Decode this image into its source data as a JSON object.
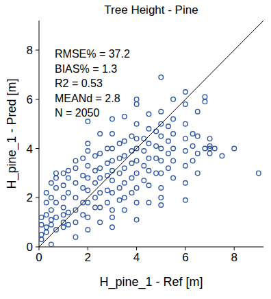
{
  "chart_data": {
    "type": "scatter",
    "title": "Tree Height - Pine",
    "x_label": "H_pine_1 - Ref [m]",
    "y_label": "H_pine_1 - Pred [m]",
    "annotations": [
      "RMSE% = 37.2",
      "BIAS% = 1.3",
      "R2 = 0.53",
      "MEANd = 2.8",
      "N = 2050"
    ],
    "xlim": [
      0,
      9.2
    ],
    "ylim": [
      0,
      9.2
    ],
    "xticks": [
      0,
      2,
      4,
      6,
      8
    ],
    "yticks": [
      0,
      2,
      4,
      6,
      8
    ],
    "grid": false,
    "series": [
      {
        "type": "scatter",
        "marker": "circle",
        "color": "#2e56a6",
        "x": [
          0.1,
          0.1,
          0.1,
          0.1,
          0.3,
          0.3,
          0.3,
          0.3,
          0.3,
          0.5,
          0.5,
          0.5,
          0.5,
          0.5,
          0.5,
          0.7,
          0.7,
          0.7,
          0.7,
          0.7,
          0.7,
          1,
          1,
          1,
          1,
          1,
          1,
          1,
          1.2,
          1.2,
          1.2,
          1.2,
          1.2,
          1.5,
          1.5,
          1.5,
          1.5,
          1.5,
          1.5,
          1.5,
          1.8,
          1.8,
          1.8,
          1.8,
          1.8,
          2,
          2,
          2,
          2,
          2,
          2,
          2,
          2,
          2,
          2.3,
          2.3,
          2.3,
          2.3,
          2.3,
          2.5,
          2.5,
          2.5,
          2.5,
          2.5,
          2.5,
          2.5,
          2.8,
          2.8,
          2.8,
          2.8,
          2.8,
          3,
          3,
          3,
          3,
          3,
          3,
          3,
          3,
          3,
          3,
          3.3,
          3.3,
          3.3,
          3.3,
          3.3,
          3.5,
          3.5,
          3.5,
          3.5,
          3.5,
          3.5,
          3.5,
          3.8,
          3.8,
          3.8,
          3.8,
          3.8,
          4,
          4,
          4,
          4,
          4,
          4,
          4,
          4,
          4,
          4,
          4.3,
          4.3,
          4.3,
          4.3,
          4.5,
          4.5,
          4.5,
          4.5,
          4.5,
          4.5,
          4.5,
          4.8,
          4.8,
          4.8,
          4.8,
          5,
          5,
          5,
          5,
          5,
          5,
          5,
          5,
          5,
          5,
          5.3,
          5.3,
          5.3,
          5.3,
          5.5,
          5.5,
          5.5,
          5.5,
          5.5,
          5.5,
          6,
          6,
          6,
          6,
          6,
          6,
          6,
          6,
          6.3,
          6.3,
          6.3,
          6.5,
          6.5,
          6.5,
          6.5,
          6.8,
          6.8,
          6.8,
          7,
          7,
          7,
          7,
          7.2,
          7.5,
          8,
          9
        ],
        "values": [
          0.5,
          0.9,
          1.2,
          0.3,
          0.8,
          1.3,
          1.8,
          0.6,
          2.2,
          0.9,
          1.5,
          2.0,
          2.6,
          0.1,
          1.1,
          1.2,
          1.8,
          2.4,
          2.8,
          0.7,
          3.0,
          1.0,
          1.6,
          2.0,
          2.5,
          3.0,
          0.8,
          1.3,
          1.4,
          2.2,
          2.8,
          0.9,
          3.1,
          1.5,
          2.0,
          2.6,
          3.2,
          1.0,
          3.5,
          0.4,
          1.8,
          2.4,
          2.9,
          1.3,
          3.6,
          1.2,
          1.8,
          2.3,
          2.8,
          3.3,
          3.9,
          4.2,
          0.7,
          5.1,
          2.0,
          2.6,
          3.1,
          1.6,
          3.7,
          1.6,
          2.2,
          2.8,
          3.2,
          3.8,
          4.6,
          1.0,
          2.3,
          2.9,
          3.4,
          1.8,
          4.0,
          1.5,
          2.2,
          2.7,
          3.1,
          3.5,
          4.0,
          4.6,
          5.2,
          1.2,
          0.8,
          2.4,
          3.0,
          3.6,
          4.2,
          1.9,
          2.0,
          2.6,
          3.2,
          3.7,
          4.3,
          5.3,
          1.5,
          2.8,
          3.4,
          3.9,
          4.5,
          2.2,
          1.8,
          2.4,
          3.0,
          3.5,
          4.0,
          4.4,
          5.0,
          5.8,
          1.1,
          6.0,
          2.7,
          3.3,
          3.9,
          4.4,
          2.5,
          3.1,
          3.6,
          4.2,
          4.8,
          5.4,
          1.8,
          3.0,
          3.6,
          4.1,
          4.7,
          2.4,
          3.0,
          3.5,
          4.0,
          4.5,
          5.0,
          5.5,
          6.9,
          1.7,
          2.0,
          3.2,
          3.8,
          4.3,
          4.9,
          2.8,
          3.5,
          4.0,
          4.6,
          5.2,
          6.0,
          2.6,
          3.3,
          3.9,
          4.4,
          5.0,
          5.8,
          6.3,
          1.9,
          3.5,
          4.1,
          4.6,
          3.0,
          3.8,
          4.5,
          5.5,
          4.0,
          6.1,
          5.9,
          3.8,
          4.0,
          4.4,
          4.1,
          4.0,
          3.7,
          4.0,
          3.0
        ]
      },
      {
        "type": "line",
        "line_style": "solid",
        "color": "#000000",
        "x": [
          0,
          9.2
        ],
        "values": [
          0,
          9.2
        ]
      }
    ]
  }
}
